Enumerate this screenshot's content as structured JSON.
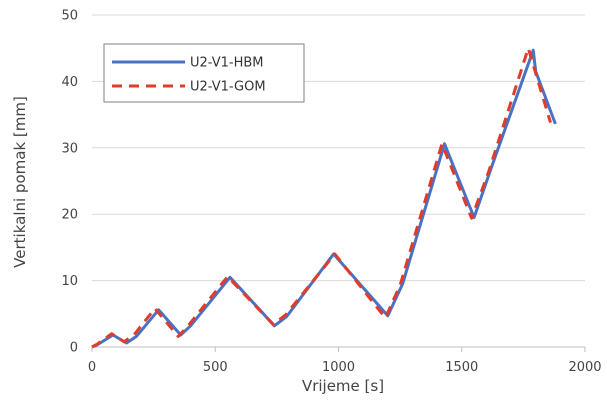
{
  "chart_data": {
    "type": "line",
    "xlabel": "Vrijeme [s]",
    "ylabel": "Vertikalni pomak [mm]",
    "xlim": [
      0,
      2000
    ],
    "ylim": [
      0,
      50
    ],
    "xticks": [
      0,
      500,
      1000,
      1500,
      2000
    ],
    "yticks": [
      0,
      10,
      20,
      30,
      40,
      50
    ],
    "xtick_labels": [
      "0",
      "500",
      "1000",
      "1500",
      "2000"
    ],
    "ytick_labels": [
      "0",
      "10",
      "20",
      "30",
      "40",
      "50"
    ],
    "grid": "horizontal",
    "legend_position": "top-left",
    "series": [
      {
        "name": "U2-V1-HBM",
        "color": "#4a72c4",
        "style": "solid",
        "points": [
          [
            0,
            0
          ],
          [
            20,
            0.3
          ],
          [
            85,
            1.8
          ],
          [
            140,
            0.6
          ],
          [
            180,
            1.6
          ],
          [
            270,
            5.6
          ],
          [
            360,
            1.8
          ],
          [
            400,
            3.2
          ],
          [
            560,
            10.5
          ],
          [
            740,
            3.2
          ],
          [
            790,
            4.6
          ],
          [
            980,
            14
          ],
          [
            1200,
            4.7
          ],
          [
            1260,
            9.5
          ],
          [
            1430,
            30.6
          ],
          [
            1550,
            19.5
          ],
          [
            1620,
            27
          ],
          [
            1790,
            44.7
          ],
          [
            1800,
            41.5
          ],
          [
            1880,
            33.6
          ]
        ]
      },
      {
        "name": "U2-V1-GOM",
        "color": "#e23b2a",
        "style": "dashed",
        "points": [
          [
            0,
            0
          ],
          [
            20,
            0.4
          ],
          [
            80,
            2
          ],
          [
            130,
            0.8
          ],
          [
            170,
            1.8
          ],
          [
            255,
            5.8
          ],
          [
            350,
            1.6
          ],
          [
            390,
            3.2
          ],
          [
            550,
            10.6
          ],
          [
            735,
            3.4
          ],
          [
            785,
            4.8
          ],
          [
            985,
            14
          ],
          [
            1190,
            4.4
          ],
          [
            1250,
            9.3
          ],
          [
            1420,
            30.6
          ],
          [
            1540,
            19.4
          ],
          [
            1610,
            26.5
          ],
          [
            1770,
            45
          ],
          [
            1790,
            42.5
          ],
          [
            1860,
            33.8
          ]
        ]
      }
    ]
  }
}
